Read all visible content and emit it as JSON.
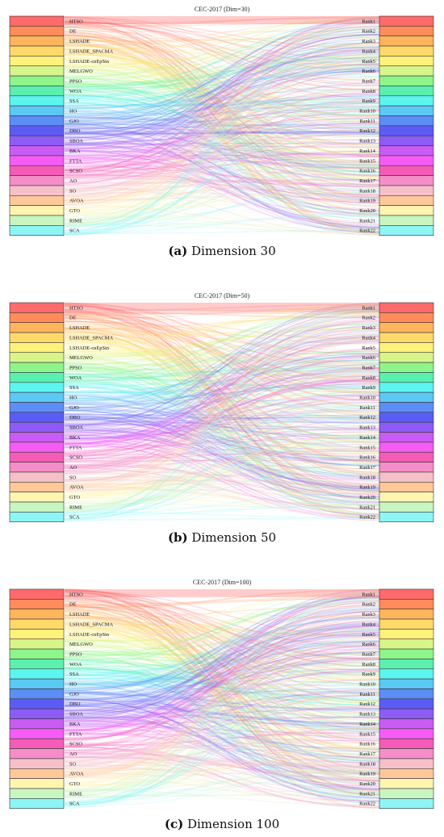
{
  "algorithms": [
    "HTSO",
    "DE",
    "LSHADE",
    "LSHADE_SPACMA",
    "LSHADE-cnEpSin",
    "MELGWO",
    "PPSO",
    "WOA",
    "SSA",
    "HO",
    "GJO",
    "DBO",
    "SBOA",
    "BKA",
    "FTTA",
    "SCSO",
    "AO",
    "SO",
    "AVOA",
    "GTO",
    "RIME",
    "SCA"
  ],
  "ranks": [
    "Rank1",
    "Rank2",
    "Rank3",
    "Rank4",
    "Rank5",
    "Rank6",
    "Rank7",
    "Rank8",
    "Rank9",
    "Rank10",
    "Rank11",
    "Rank12",
    "Rank13",
    "Rank14",
    "Rank15",
    "Rank16",
    "Rank17",
    "Rank18",
    "Rank19",
    "Rank20",
    "Rank21",
    "Rank22"
  ],
  "colors": [
    "#ff6a6a",
    "#ff8c5a",
    "#ffb55c",
    "#ffd96a",
    "#fff27a",
    "#d8f58a",
    "#8ef58a",
    "#5cf0b0",
    "#5cf5f0",
    "#5cc8f5",
    "#5c8ef5",
    "#5c5cf5",
    "#8e5cf5",
    "#c85cf5",
    "#f55cf5",
    "#f55cb8",
    "#f58ec8",
    "#f5c0c8",
    "#ffc89a",
    "#fff5b0",
    "#c8f5c0",
    "#8ef5f5"
  ],
  "captions": [
    {
      "letter": "(a)",
      "text": " Dimension 30"
    },
    {
      "letter": "(b)",
      "text": " Dimension 50"
    },
    {
      "letter": "(c)",
      "text": " Dimension 100"
    }
  ],
  "chart_data": [
    {
      "type": "sankey",
      "title": "CEC-2017 (Dim=30)",
      "left_nodes": [
        "HTSO",
        "DE",
        "LSHADE",
        "LSHADE_SPACMA",
        "LSHADE-cnEpSin",
        "MELGWO",
        "PPSO",
        "WOA",
        "SSA",
        "HO",
        "GJO",
        "DBO",
        "SBOA",
        "BKA",
        "FTTA",
        "SCSO",
        "AO",
        "SO",
        "AVOA",
        "GTO",
        "RIME",
        "SCA"
      ],
      "right_nodes": [
        "Rank1",
        "Rank2",
        "Rank3",
        "Rank4",
        "Rank5",
        "Rank6",
        "Rank7",
        "Rank8",
        "Rank9",
        "Rank10",
        "Rank11",
        "Rank12",
        "Rank13",
        "Rank14",
        "Rank15",
        "Rank16",
        "Rank17",
        "Rank18",
        "Rank19",
        "Rank20",
        "Rank21",
        "Rank22"
      ]
    },
    {
      "type": "sankey",
      "title": "CEC-2017 (Dim=50)",
      "left_nodes": [
        "HTSO",
        "DE",
        "LSHADE",
        "LSHADE_SPACMA",
        "LSHADE-cnEpSin",
        "MELGWO",
        "PPSO",
        "WOA",
        "SSA",
        "HO",
        "GJO",
        "DBO",
        "SBOA",
        "BKA",
        "FTTA",
        "SCSO",
        "AO",
        "SO",
        "AVOA",
        "GTO",
        "RIME",
        "SCA"
      ],
      "right_nodes": [
        "Rank1",
        "Rank2",
        "Rank3",
        "Rank4",
        "Rank5",
        "Rank6",
        "Rank7",
        "Rank8",
        "Rank9",
        "Rank10",
        "Rank11",
        "Rank12",
        "Rank13",
        "Rank14",
        "Rank15",
        "Rank16",
        "Rank17",
        "Rank18",
        "Rank19",
        "Rank20",
        "Rank21",
        "Rank22"
      ]
    },
    {
      "type": "sankey",
      "title": "CEC-2017 (Dim=100)",
      "left_nodes": [
        "HTSO",
        "DE",
        "LSHADE",
        "LSHADE_SPACMA",
        "LSHADE-cnEpSin",
        "MELGWO",
        "PPSO",
        "WOA",
        "SSA",
        "HO",
        "GJO",
        "DBO",
        "SBOA",
        "BKA",
        "FTTA",
        "SCSO",
        "AO",
        "SO",
        "AVOA",
        "GTO",
        "RIME",
        "SCA"
      ],
      "right_nodes": [
        "Rank1",
        "Rank2",
        "Rank3",
        "Rank4",
        "Rank5",
        "Rank6",
        "Rank7",
        "Rank8",
        "Rank9",
        "Rank10",
        "Rank11",
        "Rank12",
        "Rank13",
        "Rank14",
        "Rank15",
        "Rank16",
        "Rank17",
        "Rank18",
        "Rank19",
        "Rank20",
        "Rank21",
        "Rank22"
      ]
    }
  ]
}
